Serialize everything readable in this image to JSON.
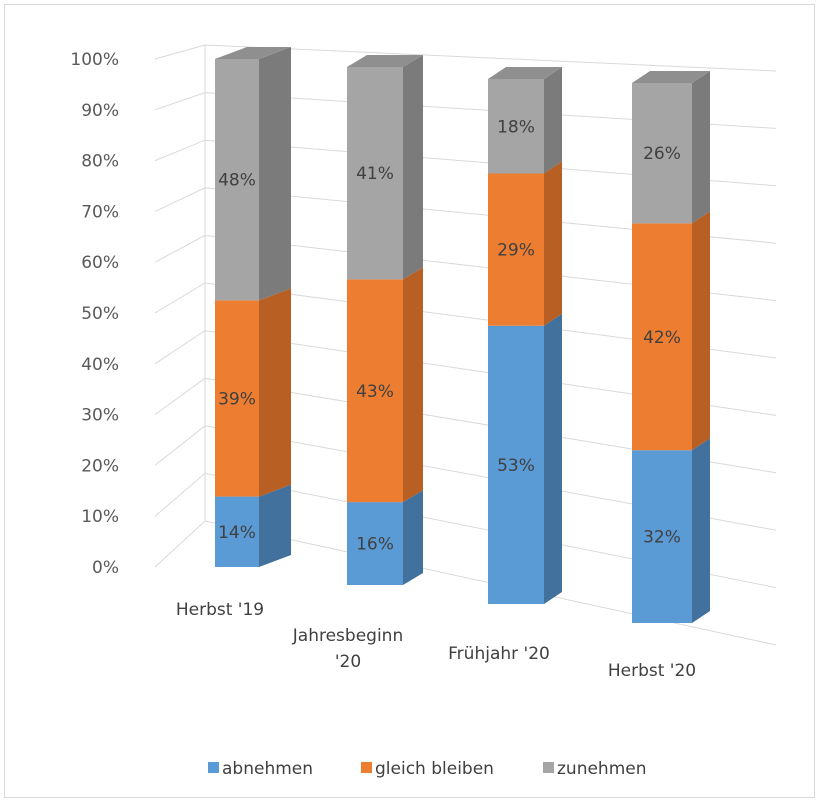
{
  "chart_data": {
    "type": "bar",
    "stacked": true,
    "style": "3d-stacked-100-percent",
    "categories": [
      "Herbst '19",
      "Jahresbeginn '20",
      "Frühjahr '20",
      "Herbst '20"
    ],
    "category_lines": [
      [
        "Herbst '19"
      ],
      [
        "Jahresbeginn",
        "'20"
      ],
      [
        "Frühjahr '20"
      ],
      [
        "Herbst '20"
      ]
    ],
    "series": [
      {
        "name": "abnehmen",
        "values": [
          14,
          16,
          53,
          32
        ],
        "labels": [
          "14%",
          "16%",
          "53%",
          "32%"
        ],
        "color": "#5b9bd5",
        "side_color": "#41719c",
        "top_color": "#4e86ba"
      },
      {
        "name": "gleich bleiben",
        "values": [
          39,
          43,
          29,
          42
        ],
        "labels": [
          "39%",
          "43%",
          "29%",
          "42%"
        ],
        "color": "#ed7d31",
        "side_color": "#b85f24",
        "top_color": "#c96a2a"
      },
      {
        "name": "zunehmen",
        "values": [
          48,
          41,
          18,
          26
        ],
        "labels": [
          "48%",
          "41%",
          "18%",
          "26%"
        ],
        "color": "#a5a5a5",
        "side_color": "#7b7b7b",
        "top_color": "#8f8f8f"
      }
    ],
    "y_ticks": [
      "0%",
      "10%",
      "20%",
      "30%",
      "40%",
      "50%",
      "60%",
      "70%",
      "80%",
      "90%",
      "100%"
    ],
    "ylim": [
      0,
      100
    ],
    "grid": true,
    "legend_position": "bottom"
  }
}
